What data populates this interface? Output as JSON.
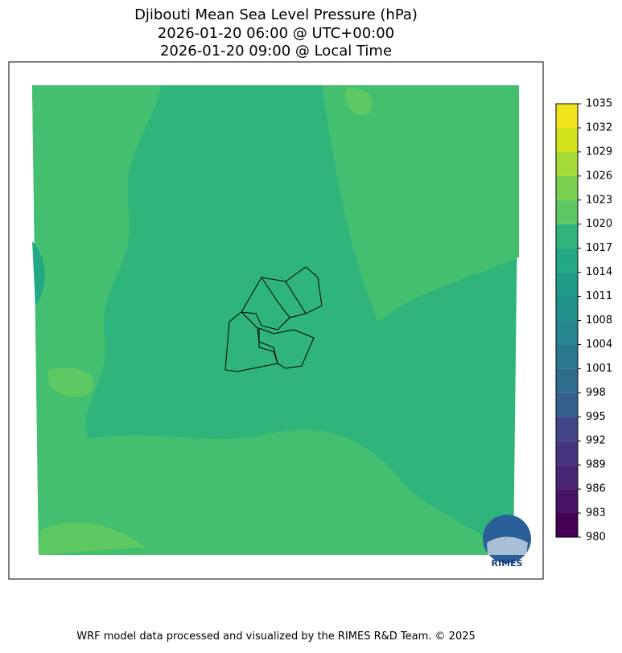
{
  "header": {
    "title_lines": [
      "Djibouti Mean Sea Level Pressure (hPa)",
      "2026-01-20 06:00 @ UTC+00:00",
      "2026-01-20 09:00 @ Local Time"
    ]
  },
  "colorbar": {
    "lim": [
      980,
      1035
    ],
    "ticks": [
      980,
      {
        "value": 983.06,
        "label": "983"
      },
      {
        "value": 986.11,
        "label": "986"
      },
      {
        "value": 989.17,
        "label": "989"
      },
      {
        "value": 992.22,
        "label": "992"
      },
      {
        "value": 995.28,
        "label": "995"
      },
      {
        "value": 998.33,
        "label": "998"
      },
      {
        "value": 1001.39,
        "label": "1001"
      },
      {
        "value": 1004.44,
        "label": "1004"
      },
      {
        "value": 1007.5,
        "label": "1008"
      },
      {
        "value": 1010.56,
        "label": "1011"
      },
      {
        "value": 1013.61,
        "label": "1014"
      },
      {
        "value": 1016.67,
        "label": "1017"
      },
      {
        "value": 1019.72,
        "label": "1020"
      },
      {
        "value": 1022.78,
        "label": "1023"
      },
      {
        "value": 1025.83,
        "label": "1026"
      },
      {
        "value": 1028.89,
        "label": "1029"
      },
      {
        "value": 1031.94,
        "label": "1032"
      },
      1035
    ],
    "colors": [
      "#440154",
      "#471365",
      "#482475",
      "#463480",
      "#414487",
      "#3b528b",
      "#355f8d",
      "#2f6c8e",
      "#2a788e",
      "#25848e",
      "#21918c",
      "#1e9c89",
      "#22a884",
      "#2fb47c",
      "#44bf70",
      "#5ec962",
      "#7ad151",
      "#a5db36",
      "#d2e21b",
      "#f0e51c"
    ]
  },
  "logo": {
    "text": "RIMES"
  },
  "footer": {
    "text": "WRF model data processed and visualized by the RIMES R&D Team. © 2025"
  }
}
